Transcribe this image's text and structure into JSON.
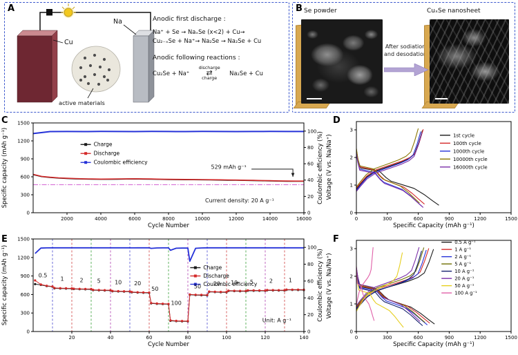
{
  "figure": {
    "labels": {
      "A": "A",
      "B": "B",
      "C": "C",
      "D": "D",
      "E": "E",
      "F": "F"
    }
  },
  "panelA": {
    "electrode_left": "Cu",
    "electrode_right": "Na",
    "active_label": "active materials",
    "title1": "Anodic first discharge :",
    "eq1": "Na⁺ + Se → NaₓSe (x<2) + Cu→",
    "eq2": "Cu₂₋ₓSe + Na⁺→ Na₂Se → Na₂Se + Cu",
    "title2": "Anodic following reactions :",
    "rxn_left": "Cu₂Se + Na⁺",
    "rxn_top": "discharge",
    "rxn_arrow": "⇄",
    "rxn_bottom": "charge",
    "rxn_right": "Na₂Se + Cu"
  },
  "panelB": {
    "left_label": "Se powder",
    "right_label": "CuₓSe nanosheet",
    "arrow_text_1": "After sodiation",
    "arrow_text_2": "and desodation"
  },
  "profile_template": {
    "discharge": [
      [
        0,
        2.25
      ],
      [
        0.02,
        1.92
      ],
      [
        0.05,
        1.62
      ],
      [
        0.28,
        1.5
      ],
      [
        0.36,
        1.27
      ],
      [
        0.42,
        1.14
      ],
      [
        0.55,
        1.02
      ],
      [
        0.7,
        0.88
      ],
      [
        0.82,
        0.66
      ],
      [
        0.92,
        0.44
      ],
      [
        1,
        0.27
      ]
    ],
    "charge": [
      [
        0,
        0.85
      ],
      [
        0.06,
        1.03
      ],
      [
        0.16,
        1.3
      ],
      [
        0.3,
        1.52
      ],
      [
        0.5,
        1.68
      ],
      [
        0.68,
        1.83
      ],
      [
        0.8,
        1.96
      ],
      [
        0.88,
        2.12
      ],
      [
        0.94,
        2.5
      ],
      [
        1,
        2.98
      ]
    ]
  },
  "chart_data": [
    {
      "panel": "C",
      "type": "line",
      "xlabel": "Cycle Number",
      "xlim": [
        0,
        16000
      ],
      "xticks": [
        2000,
        4000,
        6000,
        8000,
        10000,
        12000,
        14000,
        16000
      ],
      "y_left": {
        "label": "Specific capacity (mAh g⁻¹)",
        "lim": [
          0,
          1500
        ],
        "ticks": [
          0,
          300,
          600,
          900,
          1200,
          1500
        ]
      },
      "y_right": {
        "label": "Coulombic efficiency (%)",
        "lim": [
          0,
          110
        ],
        "ticks": [
          0,
          20,
          40,
          60,
          80,
          100
        ]
      },
      "legend_marker": true,
      "hlines": [
        {
          "y": 470,
          "color": "#cc44cc"
        }
      ],
      "series": [
        {
          "name": "Charge",
          "color": "#1a1a1a",
          "axis": "left",
          "lw": 1.6,
          "x": [
            1,
            500,
            1000,
            1500,
            2000,
            2500,
            3000,
            3500,
            4000,
            4500,
            5000,
            5500,
            6000,
            6500,
            7000,
            7500,
            8000,
            8500,
            9000,
            9500,
            10000,
            10500,
            11000,
            11500,
            12000,
            12500,
            13000,
            13500,
            14000,
            14500,
            15000,
            15500,
            16000
          ],
          "y": [
            637,
            603,
            589,
            579,
            572,
            567,
            563,
            560,
            558,
            559,
            561,
            563,
            564,
            562,
            560,
            557,
            555,
            553,
            552,
            551,
            550,
            548,
            546,
            544,
            542,
            540,
            537,
            534,
            531,
            528,
            526,
            525,
            525
          ]
        },
        {
          "name": "Discharge",
          "color": "#d42a2a",
          "axis": "left",
          "lw": 1.6,
          "x": [
            1,
            500,
            1000,
            1500,
            2000,
            2500,
            3000,
            3500,
            4000,
            4500,
            5000,
            5500,
            6000,
            6500,
            7000,
            7500,
            8000,
            8500,
            9000,
            9500,
            10000,
            10500,
            11000,
            11500,
            12000,
            12500,
            13000,
            13500,
            14000,
            14500,
            15000,
            15500,
            16000
          ],
          "y": [
            641,
            607,
            593,
            583,
            576,
            571,
            567,
            564,
            562,
            563,
            565,
            567,
            568,
            566,
            564,
            561,
            559,
            557,
            556,
            555,
            554,
            552,
            550,
            548,
            546,
            544,
            541,
            538,
            535,
            532,
            530,
            529,
            529
          ]
        },
        {
          "name": "Coulombic efficiency",
          "color": "#2431d8",
          "axis": "right",
          "lw": 2,
          "x": [
            1,
            1000,
            2000,
            3000,
            4000,
            5000,
            6000,
            7000,
            8000,
            9000,
            10000,
            11000,
            12000,
            13000,
            14000,
            15000,
            16000
          ],
          "y": [
            97.0,
            99.4,
            99.5,
            99.4,
            99.6,
            99.5,
            99.4,
            99.6,
            99.5,
            99.4,
            99.6,
            99.5,
            99.4,
            99.5,
            99.6,
            99.5,
            99.5
          ]
        }
      ],
      "annotations": [
        {
          "x": 12600,
          "y": 735,
          "text": "529 mAh g⁻¹",
          "fs": 8,
          "anchor": "end"
        },
        {
          "x": 12200,
          "y": 175,
          "text": "Current density: 20 A g⁻¹",
          "fs": 8,
          "anchor": "middle"
        }
      ],
      "connectors": [
        {
          "points": [
            [
              12900,
              728
            ],
            [
              15350,
              728
            ],
            [
              15350,
              600
            ]
          ],
          "color": "#1a1a1a"
        }
      ]
    },
    {
      "panel": "D",
      "type": "profile",
      "xlabel": "Specific Capacity (mAh g⁻¹)",
      "xlim": [
        0,
        1500
      ],
      "xticks": [
        0,
        300,
        600,
        900,
        1200,
        1500
      ],
      "y_left": {
        "label": "Voltage (V vs. Na/Na⁺)",
        "lim": [
          0,
          3.3
        ],
        "ticks": [
          0,
          1,
          2,
          3
        ]
      },
      "series": [
        {
          "name": "1st cycle",
          "color": "#1a1a1a",
          "cap_d": 800,
          "cap_c": 640,
          "v_off": 0
        },
        {
          "name": "100th cycle",
          "color": "#d42a2a",
          "cap_d": 660,
          "cap_c": 648,
          "v_off": 0.04
        },
        {
          "name": "1000th cycle",
          "color": "#2431d8",
          "cap_d": 636,
          "cap_c": 624,
          "v_off": -0.04
        },
        {
          "name": "10000th cycle",
          "color": "#8a7600",
          "cap_d": 612,
          "cap_c": 600,
          "v_off": 0.08
        },
        {
          "name": "16000th cycle",
          "color": "#7a2ea8",
          "cap_d": 648,
          "cap_c": 636,
          "v_off": -0.08
        }
      ]
    },
    {
      "panel": "E",
      "type": "line",
      "xlabel": "Cycle Number",
      "xlim": [
        0,
        140
      ],
      "xticks": [
        20,
        40,
        60,
        80,
        100,
        120,
        140
      ],
      "y_left": {
        "label": "Specific capacity (mAh g⁻¹)",
        "lim": [
          0,
          1500
        ],
        "ticks": [
          0,
          300,
          600,
          900,
          1200,
          1500
        ]
      },
      "y_right": {
        "label": "Coulombic efficiency (%)",
        "lim": [
          0,
          110
        ],
        "ticks": [
          0,
          20,
          40,
          60,
          80,
          100
        ]
      },
      "legend_marker": true,
      "vlines": [
        {
          "x": 10,
          "color": "#4848d0"
        },
        {
          "x": 20,
          "color": "#d04040"
        },
        {
          "x": 30,
          "color": "#38a038"
        },
        {
          "x": 40,
          "color": "#b040b0"
        },
        {
          "x": 50,
          "color": "#4848d0"
        },
        {
          "x": 60,
          "color": "#d04040"
        },
        {
          "x": 70,
          "color": "#38a038"
        },
        {
          "x": 80,
          "color": "#b040b0"
        },
        {
          "x": 90,
          "color": "#4848d0"
        },
        {
          "x": 100,
          "color": "#d04040"
        },
        {
          "x": 110,
          "color": "#38a038"
        },
        {
          "x": 120,
          "color": "#b040b0"
        },
        {
          "x": 130,
          "color": "#d04040"
        }
      ],
      "series": [
        {
          "name": "Charge",
          "color": "#1a1a1a",
          "axis": "left",
          "lw": 1,
          "marker": true,
          "x": [
            1,
            4,
            7,
            10,
            11,
            14,
            17,
            20,
            21,
            24,
            27,
            30,
            31,
            34,
            37,
            40,
            41,
            44,
            47,
            50,
            51,
            54,
            57,
            60,
            61,
            64,
            67,
            70,
            71,
            74,
            77,
            80,
            81,
            84,
            87,
            90,
            91,
            94,
            97,
            100,
            101,
            104,
            107,
            110,
            111,
            114,
            117,
            120,
            121,
            124,
            127,
            130,
            131,
            134,
            137,
            140
          ],
          "y": [
            768,
            756,
            737,
            726,
            700,
            697,
            695,
            694,
            688,
            686,
            684,
            683,
            670,
            667,
            665,
            664,
            652,
            649,
            647,
            646,
            635,
            631,
            628,
            626,
            456,
            449,
            445,
            442,
            174,
            168,
            165,
            163,
            595,
            591,
            588,
            586,
            642,
            639,
            637,
            636,
            657,
            655,
            653,
            652,
            662,
            661,
            660,
            659,
            667,
            666,
            665,
            664,
            675,
            674,
            673,
            672
          ]
        },
        {
          "name": "Discharge",
          "color": "#d42a2a",
          "axis": "left",
          "lw": 1,
          "marker": true,
          "x": [
            1,
            4,
            7,
            10,
            11,
            14,
            17,
            20,
            21,
            24,
            27,
            30,
            31,
            34,
            37,
            40,
            41,
            44,
            47,
            50,
            51,
            54,
            57,
            60,
            61,
            64,
            67,
            70,
            71,
            74,
            77,
            80,
            81,
            84,
            87,
            90,
            91,
            94,
            97,
            100,
            101,
            104,
            107,
            110,
            111,
            114,
            117,
            120,
            121,
            124,
            127,
            130,
            131,
            134,
            137,
            140
          ],
          "y": [
            828,
            762,
            742,
            731,
            706,
            703,
            701,
            700,
            694,
            692,
            690,
            689,
            676,
            673,
            671,
            670,
            658,
            655,
            653,
            652,
            641,
            637,
            634,
            632,
            462,
            455,
            451,
            448,
            180,
            174,
            171,
            169,
            601,
            597,
            594,
            592,
            648,
            645,
            643,
            642,
            663,
            661,
            659,
            658,
            668,
            667,
            666,
            665,
            673,
            672,
            671,
            670,
            681,
            680,
            679,
            678
          ]
        },
        {
          "name": "Coulombic efficiency",
          "color": "#2431d8",
          "axis": "right",
          "lw": 1.8,
          "x": [
            1,
            4,
            7,
            10,
            11,
            14,
            17,
            20,
            21,
            24,
            27,
            30,
            31,
            34,
            37,
            40,
            41,
            44,
            47,
            50,
            51,
            54,
            57,
            60,
            61,
            64,
            67,
            70,
            71,
            74,
            77,
            80,
            81,
            84,
            87,
            90,
            91,
            94,
            97,
            100,
            101,
            104,
            107,
            110,
            111,
            114,
            117,
            120,
            121,
            124,
            127,
            130,
            131,
            134,
            137,
            140
          ],
          "y": [
            92.8,
            99.2,
            99.4,
            99.5,
            99.5,
            99.5,
            99.5,
            99.5,
            99.5,
            99.5,
            99.5,
            99.5,
            99.5,
            99.5,
            99.5,
            99.5,
            99.5,
            99.5,
            99.5,
            99.5,
            99.4,
            99.5,
            99.5,
            99.5,
            98.8,
            99.3,
            99.4,
            99.4,
            96.5,
            99.0,
            99.2,
            99.2,
            83.5,
            98.9,
            99.3,
            99.5,
            99.5,
            99.5,
            99.5,
            99.5,
            99.5,
            99.5,
            99.5,
            99.5,
            99.5,
            99.5,
            99.5,
            99.5,
            99.5,
            99.5,
            99.5,
            99.5,
            99.5,
            99.5,
            99.5,
            99.5
          ]
        }
      ],
      "annotations": [
        {
          "x": 5,
          "y": 880,
          "text": "0.5",
          "fs": 8
        },
        {
          "x": 15,
          "y": 820,
          "text": "1",
          "fs": 8
        },
        {
          "x": 25,
          "y": 800,
          "text": "2",
          "fs": 8
        },
        {
          "x": 34,
          "y": 788,
          "text": "5",
          "fs": 8
        },
        {
          "x": 44,
          "y": 768,
          "text": "10",
          "fs": 8
        },
        {
          "x": 54,
          "y": 748,
          "text": "20",
          "fs": 8
        },
        {
          "x": 63,
          "y": 660,
          "text": "50",
          "fs": 8
        },
        {
          "x": 74,
          "y": 430,
          "text": "100",
          "fs": 8
        },
        {
          "x": 85,
          "y": 700,
          "text": "50",
          "fs": 8
        },
        {
          "x": 95,
          "y": 745,
          "text": "20",
          "fs": 8
        },
        {
          "x": 104,
          "y": 762,
          "text": "10",
          "fs": 8
        },
        {
          "x": 113,
          "y": 775,
          "text": "5",
          "fs": 8
        },
        {
          "x": 123,
          "y": 788,
          "text": "2",
          "fs": 8
        },
        {
          "x": 133,
          "y": 800,
          "text": "1",
          "fs": 8
        },
        {
          "x": 126,
          "y": 150,
          "text": "Unit: A g⁻¹",
          "fs": 8
        }
      ]
    },
    {
      "panel": "F",
      "type": "profile",
      "xlabel": "Specific Capacity (mAh g⁻¹)",
      "xlim": [
        0,
        1500
      ],
      "xticks": [
        0,
        300,
        600,
        900,
        1200,
        1500
      ],
      "y_left": {
        "label": "Voltage (V vs. Na/Na⁺)",
        "lim": [
          0,
          3.3
        ],
        "ticks": [
          0,
          1,
          2,
          3
        ]
      },
      "series": [
        {
          "name": "0.5 A g⁻¹",
          "color": "#1a1a1a",
          "cap_d": 758,
          "cap_c": 748,
          "v_off": 0
        },
        {
          "name": "1 A g⁻¹",
          "color": "#d42a2a",
          "cap_d": 712,
          "cap_c": 702,
          "v_off": 0.03
        },
        {
          "name": "2 A g⁻¹",
          "color": "#2431d8",
          "cap_d": 688,
          "cap_c": 678,
          "v_off": -0.03
        },
        {
          "name": "5 A g⁻¹",
          "color": "#6e6e00",
          "cap_d": 664,
          "cap_c": 654,
          "v_off": 0.06
        },
        {
          "name": "10 A g⁻¹",
          "color": "#14206e",
          "cap_d": 642,
          "cap_c": 632,
          "v_off": -0.06
        },
        {
          "name": "20 A g⁻¹",
          "color": "#7a2ea8",
          "cap_d": 618,
          "cap_c": 608,
          "v_off": 0.09
        },
        {
          "name": "50 A g⁻¹",
          "color": "#e6cf1e",
          "cap_d": 456,
          "cap_c": 446,
          "v_off": -0.12
        },
        {
          "name": "100 A g⁻¹",
          "color": "#e060a8",
          "cap_d": 172,
          "cap_c": 162,
          "v_off": 0.12
        }
      ]
    }
  ]
}
